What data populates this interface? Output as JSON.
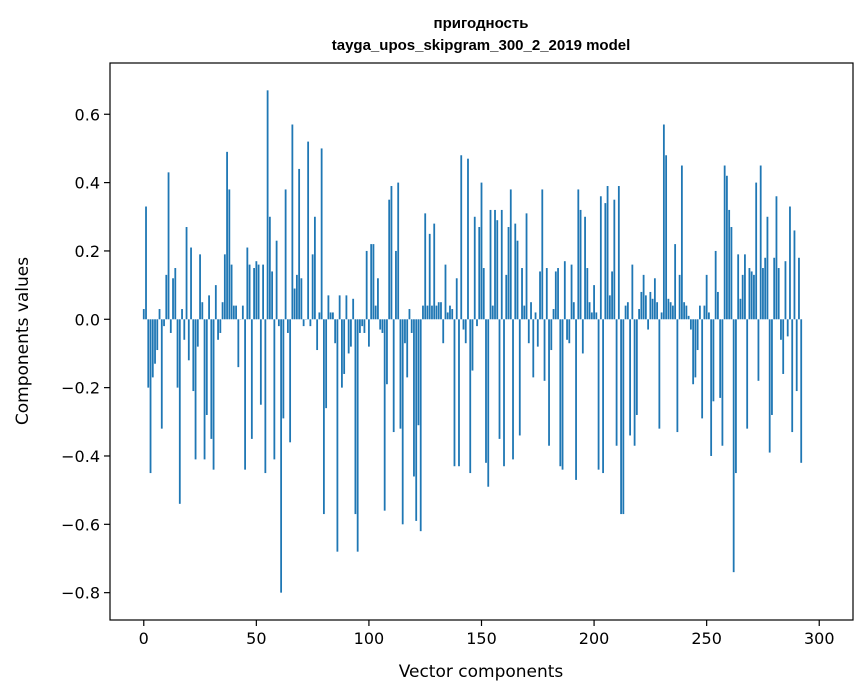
{
  "chart_data": {
    "type": "bar",
    "title": "пригодность",
    "subtitle": "tayga_upos_skipgram_300_2_2019 model",
    "xlabel": "Vector components",
    "ylabel": "Components values",
    "xlim": [
      -15,
      315
    ],
    "ylim": [
      -0.88,
      0.75
    ],
    "xticks": [
      0,
      50,
      100,
      150,
      200,
      250,
      300
    ],
    "xtick_labels": [
      "0",
      "50",
      "100",
      "150",
      "200",
      "250",
      "300"
    ],
    "yticks": [
      -0.8,
      -0.6,
      -0.4,
      -0.2,
      0.0,
      0.2,
      0.4,
      0.6
    ],
    "ytick_labels": [
      "−0.8",
      "−0.6",
      "−0.4",
      "−0.2",
      "0.0",
      "0.2",
      "0.4",
      "0.6"
    ],
    "grid": false,
    "bar_color": "#1f77b4",
    "values": [
      0.03,
      0.33,
      -0.2,
      -0.45,
      -0.17,
      -0.13,
      -0.09,
      0.03,
      -0.32,
      -0.02,
      0.13,
      0.43,
      -0.04,
      0.12,
      0.15,
      -0.2,
      -0.54,
      0.03,
      -0.06,
      0.27,
      -0.12,
      0.21,
      -0.21,
      -0.41,
      -0.08,
      0.19,
      0.05,
      -0.41,
      -0.28,
      0.07,
      -0.35,
      -0.44,
      0.1,
      -0.06,
      -0.04,
      0.05,
      0.19,
      0.49,
      0.38,
      0.16,
      0.04,
      0.04,
      -0.14,
      0.0,
      0.04,
      -0.44,
      0.21,
      0.16,
      -0.35,
      0.15,
      0.17,
      0.16,
      -0.25,
      0.16,
      -0.45,
      0.67,
      0.3,
      0.14,
      -0.41,
      0.23,
      -0.02,
      -0.8,
      -0.29,
      0.38,
      -0.04,
      -0.36,
      0.57,
      0.09,
      0.13,
      0.44,
      0.12,
      -0.02,
      0.0,
      0.52,
      -0.02,
      0.19,
      0.3,
      -0.09,
      0.02,
      0.5,
      -0.57,
      -0.26,
      0.07,
      0.02,
      0.02,
      -0.07,
      -0.68,
      0.07,
      -0.2,
      -0.16,
      0.07,
      -0.1,
      -0.08,
      0.06,
      -0.57,
      -0.68,
      -0.04,
      -0.02,
      -0.04,
      0.2,
      -0.08,
      0.22,
      0.22,
      0.04,
      0.12,
      -0.03,
      -0.04,
      -0.56,
      -0.19,
      0.35,
      0.39,
      -0.33,
      0.2,
      0.4,
      -0.32,
      -0.6,
      -0.07,
      -0.17,
      0.03,
      -0.04,
      -0.46,
      -0.59,
      -0.31,
      -0.62,
      0.04,
      0.31,
      0.04,
      0.25,
      0.04,
      0.28,
      0.04,
      0.05,
      0.05,
      -0.07,
      0.16,
      0.02,
      0.04,
      0.03,
      -0.43,
      0.12,
      -0.43,
      0.48,
      -0.03,
      -0.07,
      0.47,
      -0.45,
      -0.15,
      0.3,
      -0.02,
      0.27,
      0.4,
      0.15,
      -0.42,
      -0.49,
      0.32,
      0.04,
      0.32,
      0.29,
      -0.35,
      0.32,
      -0.43,
      0.13,
      0.27,
      0.38,
      -0.41,
      0.28,
      0.23,
      -0.34,
      0.15,
      0.04,
      0.31,
      -0.07,
      0.05,
      -0.17,
      0.02,
      -0.08,
      0.14,
      0.38,
      -0.18,
      0.15,
      -0.37,
      -0.09,
      0.03,
      0.14,
      0.15,
      -0.43,
      -0.44,
      0.17,
      -0.06,
      -0.07,
      0.16,
      0.05,
      -0.47,
      0.38,
      0.32,
      -0.1,
      0.3,
      0.15,
      0.05,
      0.02,
      0.1,
      0.02,
      -0.44,
      0.36,
      -0.45,
      0.34,
      0.39,
      0.07,
      0.14,
      0.35,
      -0.37,
      0.39,
      -0.57,
      -0.57,
      0.04,
      0.05,
      -0.34,
      0.16,
      -0.37,
      -0.28,
      0.03,
      0.08,
      0.13,
      0.07,
      -0.03,
      0.08,
      0.06,
      0.12,
      0.05,
      -0.32,
      0.02,
      0.57,
      0.48,
      0.06,
      0.05,
      0.04,
      0.22,
      -0.33,
      0.13,
      0.45,
      0.05,
      0.04,
      0.01,
      -0.03,
      -0.19,
      -0.17,
      -0.09,
      0.04,
      -0.29,
      0.04,
      0.13,
      0.02,
      -0.4,
      -0.24,
      0.2,
      0.08,
      -0.23,
      -0.37,
      0.45,
      0.42,
      0.32,
      0.27,
      -0.74,
      -0.45,
      0.19,
      0.06,
      0.13,
      0.19,
      -0.32,
      0.15,
      0.14,
      0.13,
      0.4,
      -0.18,
      0.45,
      0.15,
      0.18,
      0.3,
      -0.39,
      -0.28,
      0.18,
      0.36,
      0.15,
      -0.06,
      -0.16,
      0.17,
      -0.05,
      0.33,
      -0.33,
      0.26,
      -0.21,
      0.18,
      -0.42
    ]
  }
}
